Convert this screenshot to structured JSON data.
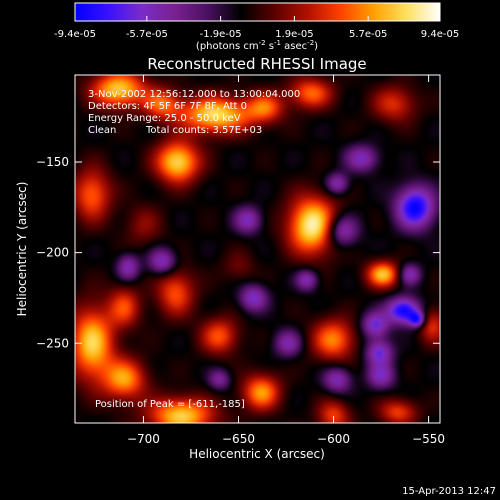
{
  "colorbar": {
    "tick_labels": [
      "-9.4e-05",
      "-5.7e-05",
      "-1.9e-05",
      "1.9e-05",
      "5.7e-05",
      "9.4e-05"
    ],
    "tick_values": [
      -9.4e-05,
      -5.7e-05,
      -1.9e-05,
      1.9e-05,
      5.7e-05,
      9.4e-05
    ],
    "range": [
      -9.4e-05,
      9.4e-05
    ],
    "unit_prefix": "(photons cm",
    "unit_exp1": "-2",
    "unit_mid": " s",
    "unit_exp2": "-1",
    "unit_mid2": " asec",
    "unit_exp3": "-2",
    "unit_suffix": ")",
    "gradient": [
      "#0000ff",
      "#3a10ff",
      "#7a2cc8",
      "#7a2090",
      "#4a1060",
      "#000000",
      "#5a0000",
      "#b01000",
      "#ff4000",
      "#ffa000",
      "#ffe060",
      "#ffffff"
    ]
  },
  "annotations": {
    "time_range": "3-Nov-2002 12:56:12.000 to 13:00:04.000",
    "detectors": "Detectors: 4F 5F 6F 7F 8F, Att 0",
    "energy": "Energy Range: 25.0 - 50.0 keV",
    "algorithm": "Clean",
    "counts": "Total counts: 3.57E+03",
    "peak": "Position of Peak = [-611,-185]"
  },
  "timestamp": "15-Apr-2013 12:47",
  "chart_data": {
    "type": "heatmap",
    "title": "Reconstructed RHESSI Image",
    "xlabel": "Heliocentric X (arcsec)",
    "ylabel": "Heliocentric Y (arcsec)",
    "xlim": [
      -736,
      -544
    ],
    "ylim": [
      -294,
      -102
    ],
    "x_ticks": [
      -700,
      -650,
      -600,
      -550
    ],
    "x_tick_labels": [
      "−700",
      "−650",
      "−600",
      "−550"
    ],
    "y_ticks": [
      -150,
      -200,
      -250
    ],
    "y_tick_labels": [
      "−150",
      "−200",
      "−250"
    ],
    "value_range": [
      -9.4e-05,
      9.4e-05
    ],
    "peak_position": [
      -611,
      -185
    ],
    "sources": [
      {
        "x": -611,
        "y": -185,
        "sx": 9,
        "sy": 11,
        "v": 1.0
      },
      {
        "x": -713,
        "y": -110,
        "sx": 10,
        "sy": 7,
        "v": 0.85
      },
      {
        "x": -690,
        "y": -118,
        "sx": 7,
        "sy": 6,
        "v": 0.55
      },
      {
        "x": -662,
        "y": -124,
        "sx": 13,
        "sy": 7,
        "v": 0.9
      },
      {
        "x": -636,
        "y": -120,
        "sx": 7,
        "sy": 6,
        "v": 0.55
      },
      {
        "x": -612,
        "y": -112,
        "sx": 8,
        "sy": 6,
        "v": 0.6
      },
      {
        "x": -682,
        "y": -150,
        "sx": 8,
        "sy": 8,
        "v": 0.9
      },
      {
        "x": -727,
        "y": -168,
        "sx": 7,
        "sy": 10,
        "v": 0.6
      },
      {
        "x": -727,
        "y": -250,
        "sx": 8,
        "sy": 14,
        "v": 0.85
      },
      {
        "x": -710,
        "y": -270,
        "sx": 8,
        "sy": 8,
        "v": 0.7
      },
      {
        "x": -680,
        "y": -290,
        "sx": 12,
        "sy": 7,
        "v": 0.85
      },
      {
        "x": -710,
        "y": -230,
        "sx": 6,
        "sy": 8,
        "v": 0.5
      },
      {
        "x": -683,
        "y": -222,
        "sx": 7,
        "sy": 9,
        "v": 0.55
      },
      {
        "x": -660,
        "y": -246,
        "sx": 7,
        "sy": 7,
        "v": 0.55
      },
      {
        "x": -638,
        "y": -277,
        "sx": 7,
        "sy": 7,
        "v": 0.7
      },
      {
        "x": -600,
        "y": -248,
        "sx": 8,
        "sy": 8,
        "v": 0.65
      },
      {
        "x": -600,
        "y": -290,
        "sx": 6,
        "sy": 6,
        "v": 0.5
      },
      {
        "x": -574,
        "y": -212,
        "sx": 6,
        "sy": 5,
        "v": 0.8
      },
      {
        "x": -566,
        "y": -288,
        "sx": 7,
        "sy": 5,
        "v": 0.5
      },
      {
        "x": -568,
        "y": -118,
        "sx": 8,
        "sy": 7,
        "v": 0.45
      },
      {
        "x": -548,
        "y": -240,
        "sx": 5,
        "sy": 7,
        "v": 0.45
      },
      {
        "x": -700,
        "y": -185,
        "sx": 7,
        "sy": 8,
        "v": 0.25
      },
      {
        "x": -650,
        "y": -208,
        "sx": 6,
        "sy": 6,
        "v": 0.2
      },
      {
        "x": -690,
        "y": -205,
        "sx": 5,
        "sy": 5,
        "v": -0.55
      },
      {
        "x": -645,
        "y": -182,
        "sx": 5,
        "sy": 5,
        "v": -0.5
      },
      {
        "x": -642,
        "y": -225,
        "sx": 5,
        "sy": 5,
        "v": -0.55
      },
      {
        "x": -614,
        "y": -215,
        "sx": 4,
        "sy": 4,
        "v": -0.5
      },
      {
        "x": -596,
        "y": -188,
        "sx": 6,
        "sy": 6,
        "v": -0.6
      },
      {
        "x": -585,
        "y": -148,
        "sx": 6,
        "sy": 5,
        "v": -0.5
      },
      {
        "x": -598,
        "y": -162,
        "sx": 4,
        "sy": 4,
        "v": -0.5
      },
      {
        "x": -557,
        "y": -175,
        "sx": 7,
        "sy": 8,
        "v": -0.9
      },
      {
        "x": -560,
        "y": -212,
        "sx": 4,
        "sy": 4,
        "v": -0.5
      },
      {
        "x": -563,
        "y": -232,
        "sx": 6,
        "sy": 5,
        "v": -0.9
      },
      {
        "x": -556,
        "y": -237,
        "sx": 3,
        "sy": 3,
        "v": -0.7
      },
      {
        "x": -578,
        "y": -240,
        "sx": 5,
        "sy": 5,
        "v": -0.6
      },
      {
        "x": -576,
        "y": -255,
        "sx": 5,
        "sy": 5,
        "v": -0.6
      },
      {
        "x": -598,
        "y": -270,
        "sx": 5,
        "sy": 5,
        "v": -0.5
      },
      {
        "x": -575,
        "y": -268,
        "sx": 5,
        "sy": 5,
        "v": -0.5
      },
      {
        "x": -708,
        "y": -208,
        "sx": 4,
        "sy": 5,
        "v": -0.5
      },
      {
        "x": -660,
        "y": -270,
        "sx": 4,
        "sy": 4,
        "v": -0.4
      },
      {
        "x": -624,
        "y": -250,
        "sx": 5,
        "sy": 5,
        "v": -0.45
      }
    ]
  }
}
